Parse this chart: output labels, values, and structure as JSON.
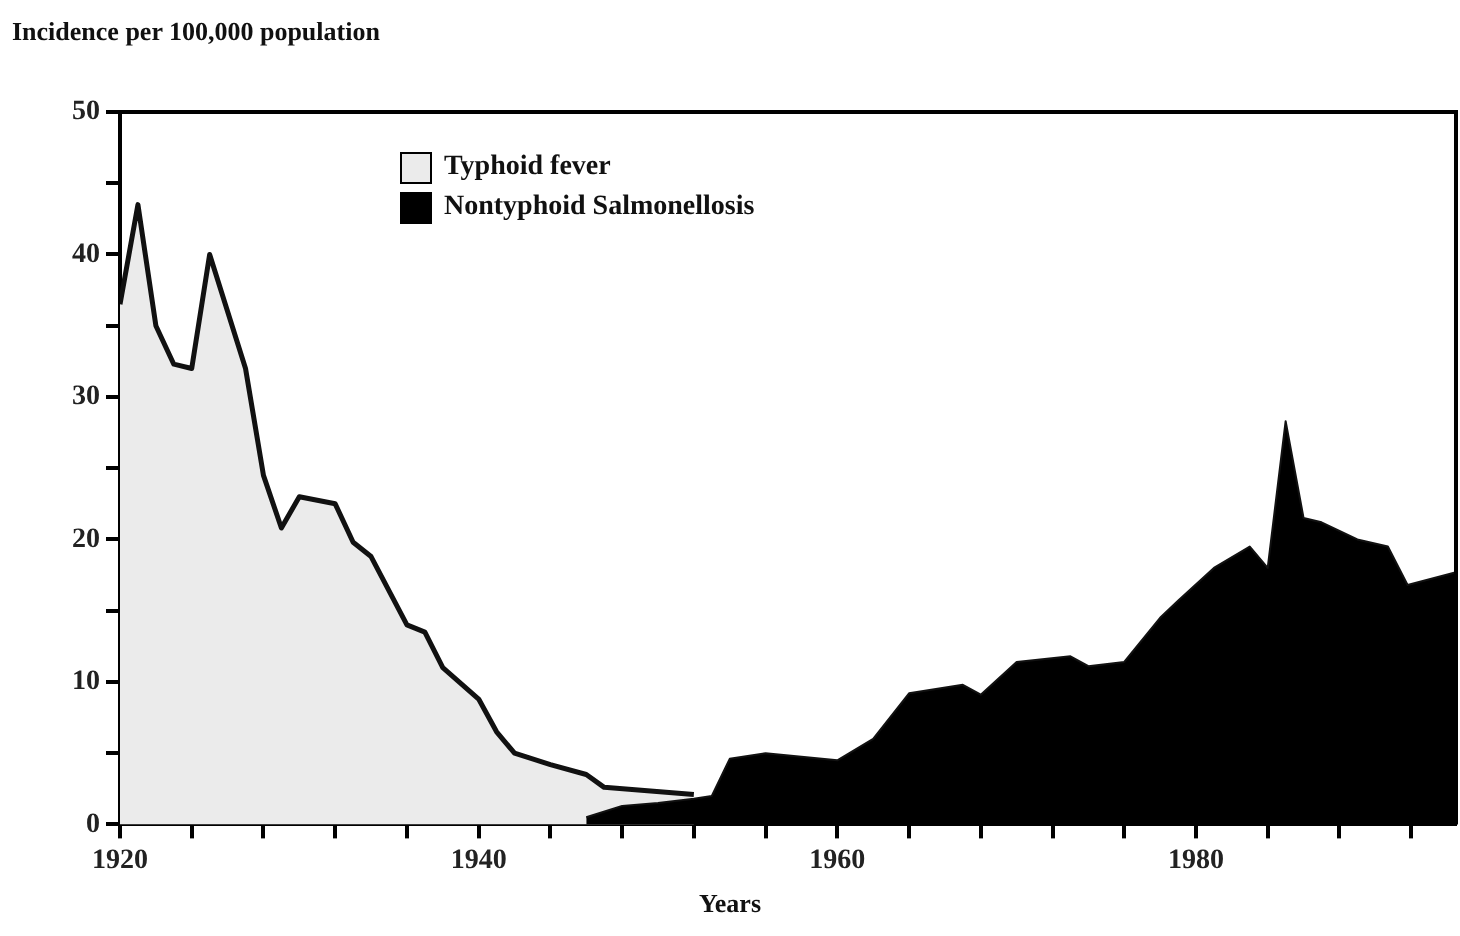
{
  "chart_data": {
    "type": "area",
    "ylabel": "Incidence per 100,000 population",
    "xlabel": "Years",
    "xlim": [
      1920,
      1994.5
    ],
    "xticks": [
      1920,
      {
        "value": 1924,
        "label": null
      },
      {
        "value": 1928,
        "label": null
      },
      {
        "value": 1932,
        "label": null
      },
      {
        "value": 1936,
        "label": null
      },
      1940,
      {
        "value": 1944,
        "label": null
      },
      {
        "value": 1948,
        "label": null
      },
      {
        "value": 1952,
        "label": null
      },
      {
        "value": 1956,
        "label": null
      },
      1960,
      {
        "value": 1964,
        "label": null
      },
      {
        "value": 1968,
        "label": null
      },
      {
        "value": 1972,
        "label": null
      },
      {
        "value": 1976,
        "label": null
      },
      1980,
      {
        "value": 1984,
        "label": null
      },
      {
        "value": 1988,
        "label": null
      },
      {
        "value": 1992,
        "label": null
      }
    ],
    "ylim": [
      0,
      50
    ],
    "yticks": [
      0,
      {
        "value": 5,
        "label": null
      },
      10,
      {
        "value": 15,
        "label": null
      },
      20,
      {
        "value": 25,
        "label": null
      },
      30,
      {
        "value": 35,
        "label": null
      },
      40,
      {
        "value": 45,
        "label": null
      },
      50
    ],
    "grid": false,
    "legend": "top left",
    "series": [
      {
        "name": "Typhoid fever",
        "color": "#ebebeb",
        "x": [
          1920,
          1921,
          1922,
          1923,
          1924,
          1925,
          1927,
          1928,
          1929,
          1930,
          1932,
          1933,
          1934,
          1936,
          1937,
          1938,
          1940,
          1941,
          1942,
          1944,
          1946,
          1947,
          1952
        ],
        "values": [
          36.5,
          43.5,
          35,
          32.3,
          32,
          40,
          32,
          24.5,
          20.8,
          23,
          22.5,
          19.8,
          18.8,
          14,
          13.5,
          11,
          8.8,
          6.5,
          5,
          4.2,
          3.5,
          2.6,
          2.1
        ]
      },
      {
        "name": "Nontyphoid Salmonellosis",
        "color": "#000000",
        "x": [
          1946,
          1948,
          1950,
          1952,
          1953,
          1954,
          1956,
          1960,
          1962,
          1964,
          1967,
          1968,
          1970,
          1973,
          1974,
          1976,
          1978,
          1979,
          1981,
          1983,
          1984,
          1985,
          1986,
          1987,
          1989,
          1990.7,
          1991.8,
          1994.5
        ],
        "values": [
          0.5,
          1.3,
          1.5,
          1.8,
          2,
          4.6,
          5,
          4.5,
          6,
          9.2,
          9.8,
          9.1,
          11.4,
          11.8,
          11.1,
          11.4,
          14.5,
          15.7,
          18,
          19.5,
          18,
          28.3,
          21.5,
          21.2,
          20,
          19.5,
          16.8,
          17.7
        ]
      }
    ]
  }
}
